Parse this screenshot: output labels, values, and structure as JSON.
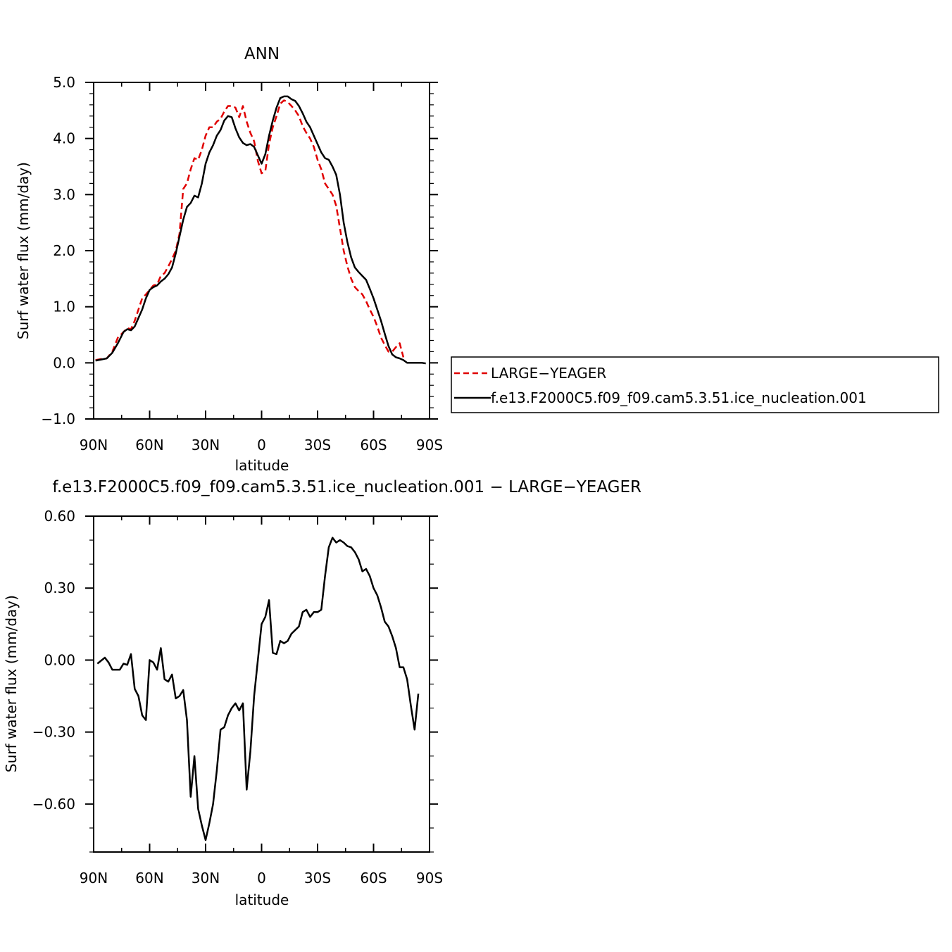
{
  "chart_data": [
    {
      "type": "line",
      "title": "ANN",
      "xlabel": "latitude",
      "ylabel": "Surf water flux (mm/day)",
      "xlim": [
        90,
        -90
      ],
      "ylim": [
        -1.0,
        5.0
      ],
      "x_ticks": [
        90,
        60,
        30,
        0,
        -30,
        -60,
        -90
      ],
      "x_tick_labels": [
        "90N",
        "60N",
        "30N",
        "0",
        "30S",
        "60S",
        "90S"
      ],
      "y_ticks": [
        -1.0,
        0.0,
        1.0,
        2.0,
        3.0,
        4.0,
        5.0
      ],
      "y_tick_labels": [
        "−1.0",
        "0.0",
        "1.0",
        "2.0",
        "3.0",
        "4.0",
        "5.0"
      ],
      "grid": false,
      "legend": "right, outside plot",
      "series": [
        {
          "name": "LARGE−YEAGER",
          "color": "#e00000",
          "dash": "dashed",
          "points": [
            [
              89,
              0.05
            ],
            [
              86,
              0.07
            ],
            [
              83,
              0.08
            ],
            [
              80,
              0.2
            ],
            [
              77,
              0.45
            ],
            [
              74,
              0.55
            ],
            [
              72,
              0.62
            ],
            [
              70,
              0.6
            ],
            [
              68,
              0.75
            ],
            [
              66,
              0.95
            ],
            [
              64,
              1.15
            ],
            [
              62,
              1.22
            ],
            [
              60,
              1.3
            ],
            [
              58,
              1.38
            ],
            [
              56,
              1.4
            ],
            [
              54,
              1.55
            ],
            [
              52,
              1.6
            ],
            [
              50,
              1.72
            ],
            [
              48,
              1.85
            ],
            [
              46,
              2.0
            ],
            [
              44,
              2.3
            ],
            [
              42,
              3.1
            ],
            [
              40,
              3.2
            ],
            [
              38,
              3.45
            ],
            [
              36,
              3.65
            ],
            [
              34,
              3.62
            ],
            [
              32,
              3.8
            ],
            [
              30,
              4.05
            ],
            [
              28,
              4.2
            ],
            [
              26,
              4.2
            ],
            [
              24,
              4.3
            ],
            [
              22,
              4.35
            ],
            [
              20,
              4.48
            ],
            [
              18,
              4.58
            ],
            [
              16,
              4.58
            ],
            [
              14,
              4.55
            ],
            [
              12,
              4.38
            ],
            [
              10,
              4.58
            ],
            [
              8,
              4.3
            ],
            [
              6,
              4.1
            ],
            [
              4,
              3.95
            ],
            [
              2,
              3.6
            ],
            [
              0,
              3.38
            ],
            [
              -2,
              3.42
            ],
            [
              -4,
              3.9
            ],
            [
              -6,
              4.2
            ],
            [
              -8,
              4.4
            ],
            [
              -10,
              4.62
            ],
            [
              -12,
              4.68
            ],
            [
              -14,
              4.65
            ],
            [
              -16,
              4.58
            ],
            [
              -18,
              4.5
            ],
            [
              -20,
              4.4
            ],
            [
              -22,
              4.22
            ],
            [
              -24,
              4.1
            ],
            [
              -26,
              4.0
            ],
            [
              -28,
              3.85
            ],
            [
              -30,
              3.62
            ],
            [
              -32,
              3.45
            ],
            [
              -34,
              3.2
            ],
            [
              -36,
              3.1
            ],
            [
              -38,
              3.0
            ],
            [
              -40,
              2.8
            ],
            [
              -42,
              2.4
            ],
            [
              -44,
              2.0
            ],
            [
              -46,
              1.72
            ],
            [
              -48,
              1.5
            ],
            [
              -50,
              1.35
            ],
            [
              -52,
              1.28
            ],
            [
              -54,
              1.22
            ],
            [
              -56,
              1.1
            ],
            [
              -58,
              0.95
            ],
            [
              -60,
              0.82
            ],
            [
              -62,
              0.65
            ],
            [
              -64,
              0.45
            ],
            [
              -66,
              0.32
            ],
            [
              -68,
              0.2
            ],
            [
              -70,
              0.2
            ],
            [
              -72,
              0.28
            ],
            [
              -74,
              0.35
            ],
            [
              -76,
              0.1
            ]
          ]
        },
        {
          "name": "f.e13.F2000C5.f09_f09.cam5.3.51.ice_nucleation.001",
          "color": "#000000",
          "dash": "solid",
          "points": [
            [
              89,
              0.04
            ],
            [
              86,
              0.06
            ],
            [
              83,
              0.08
            ],
            [
              80,
              0.18
            ],
            [
              77,
              0.35
            ],
            [
              74,
              0.55
            ],
            [
              72,
              0.6
            ],
            [
              70,
              0.58
            ],
            [
              68,
              0.65
            ],
            [
              66,
              0.8
            ],
            [
              64,
              0.95
            ],
            [
              62,
              1.15
            ],
            [
              60,
              1.3
            ],
            [
              58,
              1.35
            ],
            [
              56,
              1.38
            ],
            [
              54,
              1.45
            ],
            [
              52,
              1.5
            ],
            [
              50,
              1.58
            ],
            [
              48,
              1.7
            ],
            [
              46,
              1.95
            ],
            [
              44,
              2.25
            ],
            [
              42,
              2.55
            ],
            [
              40,
              2.78
            ],
            [
              38,
              2.85
            ],
            [
              36,
              2.98
            ],
            [
              34,
              2.95
            ],
            [
              32,
              3.2
            ],
            [
              30,
              3.55
            ],
            [
              28,
              3.75
            ],
            [
              26,
              3.88
            ],
            [
              24,
              4.05
            ],
            [
              22,
              4.15
            ],
            [
              20,
              4.32
            ],
            [
              18,
              4.4
            ],
            [
              16,
              4.38
            ],
            [
              14,
              4.18
            ],
            [
              12,
              4.02
            ],
            [
              10,
              3.92
            ],
            [
              8,
              3.88
            ],
            [
              6,
              3.9
            ],
            [
              4,
              3.85
            ],
            [
              2,
              3.7
            ],
            [
              0,
              3.55
            ],
            [
              -2,
              3.72
            ],
            [
              -4,
              4.05
            ],
            [
              -6,
              4.32
            ],
            [
              -8,
              4.55
            ],
            [
              -10,
              4.72
            ],
            [
              -12,
              4.75
            ],
            [
              -14,
              4.75
            ],
            [
              -16,
              4.7
            ],
            [
              -18,
              4.67
            ],
            [
              -20,
              4.58
            ],
            [
              -22,
              4.45
            ],
            [
              -24,
              4.3
            ],
            [
              -26,
              4.2
            ],
            [
              -28,
              4.05
            ],
            [
              -30,
              3.9
            ],
            [
              -32,
              3.75
            ],
            [
              -34,
              3.65
            ],
            [
              -36,
              3.62
            ],
            [
              -38,
              3.5
            ],
            [
              -40,
              3.35
            ],
            [
              -42,
              3.0
            ],
            [
              -44,
              2.5
            ],
            [
              -46,
              2.15
            ],
            [
              -48,
              1.88
            ],
            [
              -50,
              1.7
            ],
            [
              -52,
              1.62
            ],
            [
              -54,
              1.55
            ],
            [
              -56,
              1.48
            ],
            [
              -58,
              1.32
            ],
            [
              -60,
              1.15
            ],
            [
              -62,
              0.95
            ],
            [
              -64,
              0.75
            ],
            [
              -66,
              0.52
            ],
            [
              -68,
              0.3
            ],
            [
              -70,
              0.15
            ],
            [
              -72,
              0.1
            ],
            [
              -74,
              0.08
            ],
            [
              -76,
              0.05
            ],
            [
              -78,
              0.0
            ],
            [
              -80,
              0.0
            ],
            [
              -82,
              0.0
            ],
            [
              -84,
              0.0
            ],
            [
              -86,
              0.0
            ],
            [
              -88,
              -0.01
            ]
          ]
        }
      ]
    },
    {
      "type": "line",
      "title": "f.e13.F2000C5.f09_f09.cam5.3.51.ice_nucleation.001 − LARGE−YEAGER",
      "xlabel": "latitude",
      "ylabel": "Surf water flux (mm/day)",
      "xlim": [
        90,
        -90
      ],
      "ylim": [
        -0.8,
        0.6
      ],
      "x_ticks": [
        90,
        60,
        30,
        0,
        -30,
        -60,
        -90
      ],
      "x_tick_labels": [
        "90N",
        "60N",
        "30N",
        "0",
        "30S",
        "60S",
        "90S"
      ],
      "y_ticks": [
        -0.6,
        -0.3,
        0.0,
        0.3,
        0.6
      ],
      "y_tick_labels": [
        "−0.60",
        "−0.30",
        "0.00",
        "0.30",
        "0.60"
      ],
      "grid": false,
      "series": [
        {
          "color": "#000000",
          "dash": "solid",
          "points": [
            [
              88,
              -0.015
            ],
            [
              84,
              0.01
            ],
            [
              82,
              -0.01
            ],
            [
              80,
              -0.04
            ],
            [
              78,
              -0.04
            ],
            [
              76,
              -0.04
            ],
            [
              74,
              -0.015
            ],
            [
              72,
              -0.02
            ],
            [
              70,
              0.025
            ],
            [
              68,
              -0.12
            ],
            [
              66,
              -0.15
            ],
            [
              64,
              -0.23
            ],
            [
              62,
              -0.25
            ],
            [
              60,
              0.0
            ],
            [
              58,
              -0.01
            ],
            [
              56,
              -0.04
            ],
            [
              54,
              0.05
            ],
            [
              52,
              -0.08
            ],
            [
              50,
              -0.09
            ],
            [
              48,
              -0.06
            ],
            [
              46,
              -0.16
            ],
            [
              44,
              -0.15
            ],
            [
              42,
              -0.125
            ],
            [
              40,
              -0.25
            ],
            [
              38,
              -0.57
            ],
            [
              36,
              -0.4
            ],
            [
              34,
              -0.62
            ],
            [
              32,
              -0.69
            ],
            [
              30,
              -0.75
            ],
            [
              28,
              -0.68
            ],
            [
              26,
              -0.6
            ],
            [
              24,
              -0.46
            ],
            [
              22,
              -0.29
            ],
            [
              20,
              -0.28
            ],
            [
              18,
              -0.23
            ],
            [
              16,
              -0.2
            ],
            [
              14,
              -0.18
            ],
            [
              12,
              -0.21
            ],
            [
              10,
              -0.18
            ],
            [
              8,
              -0.54
            ],
            [
              6,
              -0.38
            ],
            [
              4,
              -0.15
            ],
            [
              2,
              0.0
            ],
            [
              0,
              0.15
            ],
            [
              -2,
              0.18
            ],
            [
              -4,
              0.25
            ],
            [
              -6,
              0.03
            ],
            [
              -8,
              0.025
            ],
            [
              -10,
              0.08
            ],
            [
              -12,
              0.07
            ],
            [
              -14,
              0.08
            ],
            [
              -16,
              0.11
            ],
            [
              -18,
              0.125
            ],
            [
              -20,
              0.14
            ],
            [
              -22,
              0.2
            ],
            [
              -24,
              0.21
            ],
            [
              -26,
              0.18
            ],
            [
              -28,
              0.2
            ],
            [
              -30,
              0.2
            ],
            [
              -32,
              0.21
            ],
            [
              -34,
              0.35
            ],
            [
              -36,
              0.47
            ],
            [
              -38,
              0.51
            ],
            [
              -40,
              0.49
            ],
            [
              -42,
              0.5
            ],
            [
              -44,
              0.49
            ],
            [
              -46,
              0.475
            ],
            [
              -48,
              0.47
            ],
            [
              -50,
              0.45
            ],
            [
              -52,
              0.42
            ],
            [
              -54,
              0.37
            ],
            [
              -56,
              0.38
            ],
            [
              -58,
              0.35
            ],
            [
              -60,
              0.3
            ],
            [
              -62,
              0.27
            ],
            [
              -64,
              0.22
            ],
            [
              -66,
              0.16
            ],
            [
              -68,
              0.14
            ],
            [
              -70,
              0.1
            ],
            [
              -72,
              0.05
            ],
            [
              -74,
              -0.03
            ],
            [
              -76,
              -0.03
            ],
            [
              -78,
              -0.08
            ],
            [
              -80,
              -0.19
            ],
            [
              -82,
              -0.29
            ],
            [
              -84,
              -0.14
            ]
          ]
        }
      ]
    }
  ]
}
